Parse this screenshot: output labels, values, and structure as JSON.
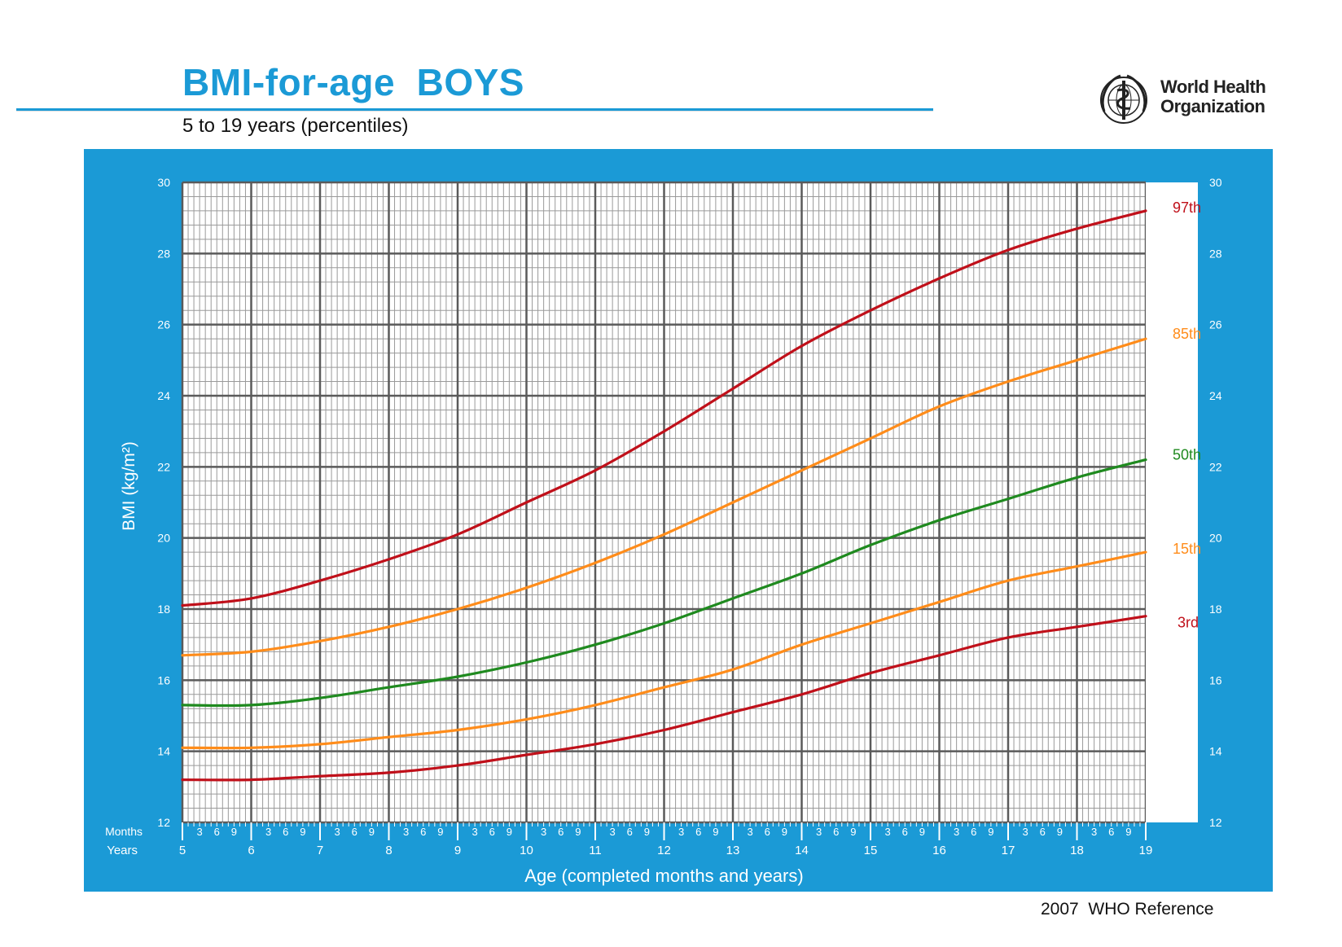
{
  "header": {
    "title": "BMI-for-age  BOYS",
    "subtitle": "5 to 19 years (percentiles)",
    "logo_text_line1": "World Health",
    "logo_text_line2": "Organization",
    "footer": "2007  WHO Reference"
  },
  "colors": {
    "brand_blue": "#1b9ad6",
    "p97": "#c0101a",
    "p85": "#ff8c1a",
    "p50": "#1f8a1f",
    "p15": "#ff8c1a",
    "p3": "#c0101a"
  },
  "axis_words": {
    "months": "Months",
    "years": "Years"
  },
  "chart_data": {
    "type": "line",
    "title": "BMI-for-age  BOYS",
    "subtitle": "5 to 19 years (percentiles)",
    "xlabel": "Age (completed months and years)",
    "ylabel": "BMI (kg/m²)",
    "xlim": [
      5,
      19
    ],
    "ylim": [
      12,
      30
    ],
    "x_major_ticks": [
      5,
      6,
      7,
      8,
      9,
      10,
      11,
      12,
      13,
      14,
      15,
      16,
      17,
      18,
      19
    ],
    "x_month_ticks": [
      "3",
      "6",
      "9"
    ],
    "y_ticks": [
      12,
      14,
      16,
      18,
      20,
      22,
      24,
      26,
      28,
      30
    ],
    "grid": true,
    "x": [
      5,
      6,
      7,
      8,
      9,
      10,
      11,
      12,
      13,
      14,
      15,
      16,
      17,
      18,
      19
    ],
    "series": [
      {
        "name": "97th",
        "color": "#c0101a",
        "values": [
          18.1,
          18.3,
          18.8,
          19.4,
          20.1,
          21.0,
          21.9,
          23.0,
          24.2,
          25.4,
          26.4,
          27.3,
          28.1,
          28.7,
          29.2
        ]
      },
      {
        "name": "85th",
        "color": "#ff8c1a",
        "values": [
          16.7,
          16.8,
          17.1,
          17.5,
          18.0,
          18.6,
          19.3,
          20.1,
          21.0,
          21.9,
          22.8,
          23.7,
          24.4,
          25.0,
          25.6
        ]
      },
      {
        "name": "50th",
        "color": "#1f8a1f",
        "values": [
          15.3,
          15.3,
          15.5,
          15.8,
          16.1,
          16.5,
          17.0,
          17.6,
          18.3,
          19.0,
          19.8,
          20.5,
          21.1,
          21.7,
          22.2
        ]
      },
      {
        "name": "15th",
        "color": "#ff8c1a",
        "values": [
          14.1,
          14.1,
          14.2,
          14.4,
          14.6,
          14.9,
          15.3,
          15.8,
          16.3,
          17.0,
          17.6,
          18.2,
          18.8,
          19.2,
          19.6
        ]
      },
      {
        "name": "3rd",
        "color": "#c0101a",
        "values": [
          13.2,
          13.2,
          13.3,
          13.4,
          13.6,
          13.9,
          14.2,
          14.6,
          15.1,
          15.6,
          16.2,
          16.7,
          17.2,
          17.5,
          17.8
        ]
      }
    ]
  }
}
